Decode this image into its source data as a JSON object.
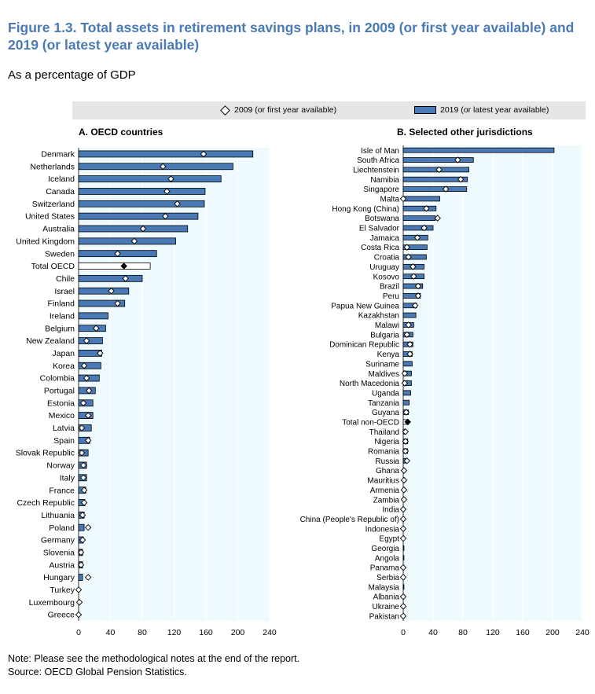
{
  "title": "Figure 1.3. Total assets in retirement savings plans, in 2009 (or first year available) and 2019 (or latest year available)",
  "subtitle": "As a percentage of GDP",
  "legend": {
    "diamond_label": "2009 (or first year available)",
    "bar_label": "2019 (or latest year available)"
  },
  "colors": {
    "bar": "#4a7ab5",
    "total_bar": "#ffffff",
    "plot_bg": "#eefafe",
    "title": "#4a7ab5"
  },
  "notes": {
    "note": "Note: Please see the methodological notes at the end of the report.",
    "source": "Source: OECD Global Pension Statistics."
  },
  "chart_data": [
    {
      "type": "bar",
      "orientation": "horizontal",
      "title": "A. OECD countries",
      "xlim": [
        0,
        240
      ],
      "xticks": [
        0,
        40,
        80,
        120,
        160,
        200,
        240
      ],
      "grid": true,
      "categories": [
        "Denmark",
        "Netherlands",
        "Iceland",
        "Canada",
        "Switzerland",
        "United States",
        "Australia",
        "United Kingdom",
        "Sweden",
        "Total OECD",
        "Chile",
        "Israel",
        "Finland",
        "Ireland",
        "Belgium",
        "New Zealand",
        "Japan",
        "Korea",
        "Colombia",
        "Portugal",
        "Estonia",
        "Mexico",
        "Latvia",
        "Spain",
        "Slovak Republic",
        "Norway",
        "Italy",
        "France",
        "Czech Republic",
        "Lithuania",
        "Poland",
        "Germany",
        "Slovenia",
        "Austria",
        "Hungary",
        "Turkey",
        "Luxembourg",
        "Greece"
      ],
      "series": [
        {
          "name": "2019 (or latest year available)",
          "values": [
            219,
            194,
            179,
            159,
            158,
            150,
            137,
            122,
            98,
            90,
            80,
            63,
            58,
            37,
            34,
            30,
            29,
            28,
            26,
            21,
            18,
            18,
            16,
            14,
            12,
            10,
            10,
            9,
            8,
            7,
            7,
            6,
            5,
            5,
            5,
            0,
            0,
            0
          ]
        },
        {
          "name": "2009 (or first year available)",
          "values": [
            157,
            106,
            116,
            111,
            124,
            109,
            81,
            70,
            49,
            57,
            59,
            41,
            49,
            null,
            22,
            10,
            27,
            7,
            10,
            13,
            6,
            12,
            4,
            12,
            4,
            6,
            6,
            7,
            7,
            5,
            12,
            5,
            3,
            3,
            12,
            0,
            1,
            0
          ]
        }
      ],
      "highlight": "Total OECD"
    },
    {
      "type": "bar",
      "orientation": "horizontal",
      "title": "B. Selected other jurisdictions",
      "xlim": [
        0,
        240
      ],
      "xticks": [
        0,
        40,
        80,
        120,
        160,
        200,
        240
      ],
      "grid": true,
      "categories": [
        "Isle of Man",
        "South Africa",
        "Liechtenstein",
        "Namibia",
        "Singapore",
        "Malta",
        "Hong Kong (China)",
        "Botswana",
        "El Salvador",
        "Jamaica",
        "Costa Rica",
        "Croatia",
        "Uruguay",
        "Kosovo",
        "Brazil",
        "Peru",
        "Papua New Guinea",
        "Kazakhstan",
        "Malawi",
        "Bulgaria",
        "Dominican Republic",
        "Kenya",
        "Suriname",
        "Maldives",
        "North Macedonia",
        "Uganda",
        "Tanzania",
        "Guyana",
        "Total non-OECD",
        "Thailand",
        "Nigeria",
        "Romania",
        "Russia",
        "Ghana",
        "Mauritius",
        "Armenia",
        "Zambia",
        "India",
        "China (People's Republic of)",
        "Indonesia",
        "Egypt",
        "Georgia",
        "Angola",
        "Panama",
        "Serbia",
        "Malaysia",
        "Albania",
        "Ukraine",
        "Pakistan"
      ],
      "series": [
        {
          "name": "2019 (or latest year available)",
          "values": [
            202,
            94,
            88,
            86,
            85,
            49,
            44,
            43,
            40,
            33,
            32,
            31,
            28,
            28,
            26,
            23,
            18,
            17,
            14,
            13,
            13,
            12,
            12,
            11,
            11,
            10,
            8,
            7,
            7,
            3,
            6,
            6,
            3,
            2,
            2,
            2,
            2,
            1,
            1,
            1,
            1,
            1,
            1,
            1,
            1,
            1,
            1,
            1,
            1
          ]
        },
        {
          "name": "2009 (or first year available)",
          "values": [
            null,
            73,
            48,
            77,
            57,
            0,
            31,
            46,
            28,
            19,
            5,
            7,
            13,
            14,
            20,
            20,
            16,
            null,
            7,
            5,
            9,
            9,
            null,
            2,
            2,
            null,
            null,
            4,
            6,
            3,
            3,
            3,
            5,
            1,
            1,
            1,
            1,
            0,
            0,
            0,
            0,
            null,
            null,
            0,
            0,
            null,
            0,
            0,
            0
          ]
        }
      ],
      "highlight": "Total non-OECD"
    }
  ]
}
